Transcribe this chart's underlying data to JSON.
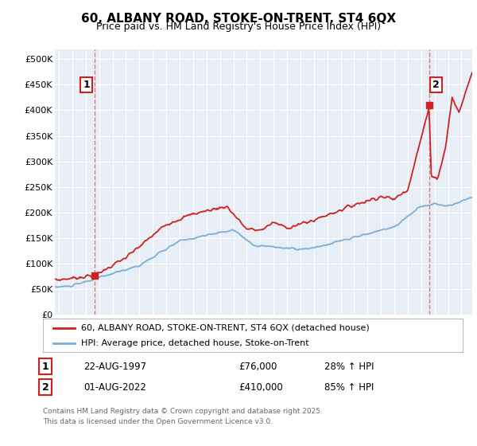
{
  "title": "60, ALBANY ROAD, STOKE-ON-TRENT, ST4 6QX",
  "subtitle": "Price paid vs. HM Land Registry's House Price Index (HPI)",
  "ylim": [
    0,
    520000
  ],
  "yticks": [
    0,
    50000,
    100000,
    150000,
    200000,
    250000,
    300000,
    350000,
    400000,
    450000,
    500000
  ],
  "ytick_labels": [
    "£0",
    "£50K",
    "£100K",
    "£150K",
    "£200K",
    "£250K",
    "£300K",
    "£350K",
    "£400K",
    "£450K",
    "£500K"
  ],
  "xlim_start": 1994.7,
  "xlim_end": 2025.8,
  "xticks": [
    1995,
    1996,
    1997,
    1998,
    1999,
    2000,
    2001,
    2002,
    2003,
    2004,
    2005,
    2006,
    2007,
    2008,
    2009,
    2010,
    2011,
    2012,
    2013,
    2014,
    2015,
    2016,
    2017,
    2018,
    2019,
    2020,
    2021,
    2022,
    2023,
    2024,
    2025
  ],
  "fig_bg_color": "#ffffff",
  "plot_bg_color": "#e8eef5",
  "grid_color": "#ffffff",
  "red_line_color": "#cc2222",
  "blue_line_color": "#7bafd4",
  "sale1_x": 1997.64,
  "sale1_y": 76000,
  "sale1_label": "1",
  "sale2_x": 2022.58,
  "sale2_y": 410000,
  "sale2_label": "2",
  "vline_color": "#e06060",
  "marker_color": "#cc2222",
  "legend_label_red": "60, ALBANY ROAD, STOKE-ON-TRENT, ST4 6QX (detached house)",
  "legend_label_blue": "HPI: Average price, detached house, Stoke-on-Trent",
  "footer": "Contains HM Land Registry data © Crown copyright and database right 2025.\nThis data is licensed under the Open Government Licence v3.0.",
  "title_fontsize": 11,
  "subtitle_fontsize": 9
}
